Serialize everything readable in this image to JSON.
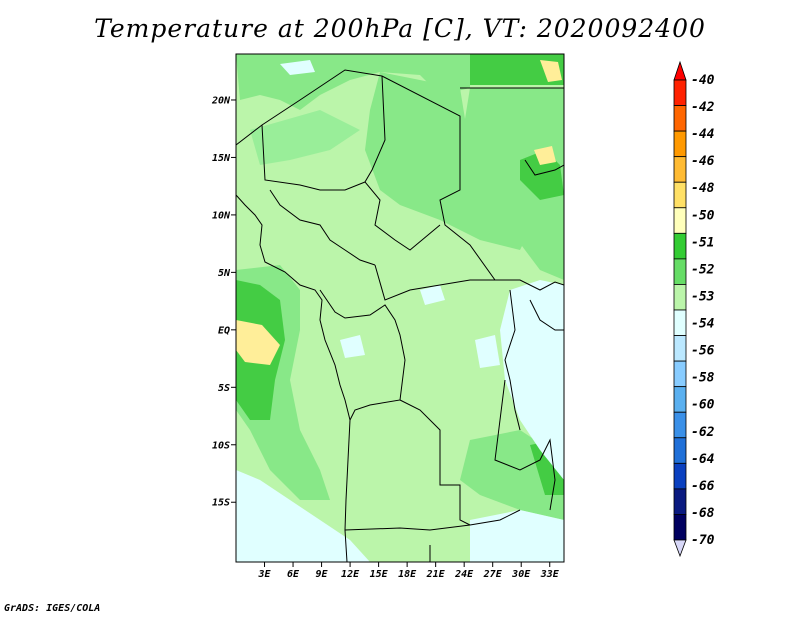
{
  "title": "Temperature at 200hPa [C], VT: 2020092400",
  "credit": "GrADS: IGES/COLA",
  "map": {
    "lon_range": [
      0,
      34.5
    ],
    "lat_range": [
      -20.2,
      24
    ],
    "x_ticks": [
      "3E",
      "6E",
      "9E",
      "12E",
      "15E",
      "18E",
      "21E",
      "24E",
      "27E",
      "30E",
      "33E"
    ],
    "x_tick_values": [
      3,
      6,
      9,
      12,
      15,
      18,
      21,
      24,
      27,
      30,
      33
    ],
    "y_ticks": [
      "20N",
      "15N",
      "10N",
      "5N",
      "EQ",
      "5S",
      "10S",
      "15S"
    ],
    "y_tick_values": [
      20,
      15,
      10,
      5,
      0,
      -5,
      -10,
      -15
    ]
  },
  "legend": {
    "labels": [
      "-40",
      "-42",
      "-44",
      "-46",
      "-48",
      "-50",
      "-51",
      "-52",
      "-53",
      "-54",
      "-56",
      "-58",
      "-60",
      "-62",
      "-64",
      "-66",
      "-68",
      "-70"
    ],
    "colors": [
      "#ff0000",
      "#ff2200",
      "#ff6600",
      "#ff9900",
      "#ffbb33",
      "#ffe066",
      "#ffffbb",
      "#33cc33",
      "#66dd66",
      "#bbf5aa",
      "#e0ffff",
      "#bbe8ff",
      "#88ccff",
      "#5ab0f0",
      "#3a90e8",
      "#2070d8",
      "#0a40c0",
      "#0a1a80",
      "#000060",
      "#d8d8f8"
    ]
  }
}
